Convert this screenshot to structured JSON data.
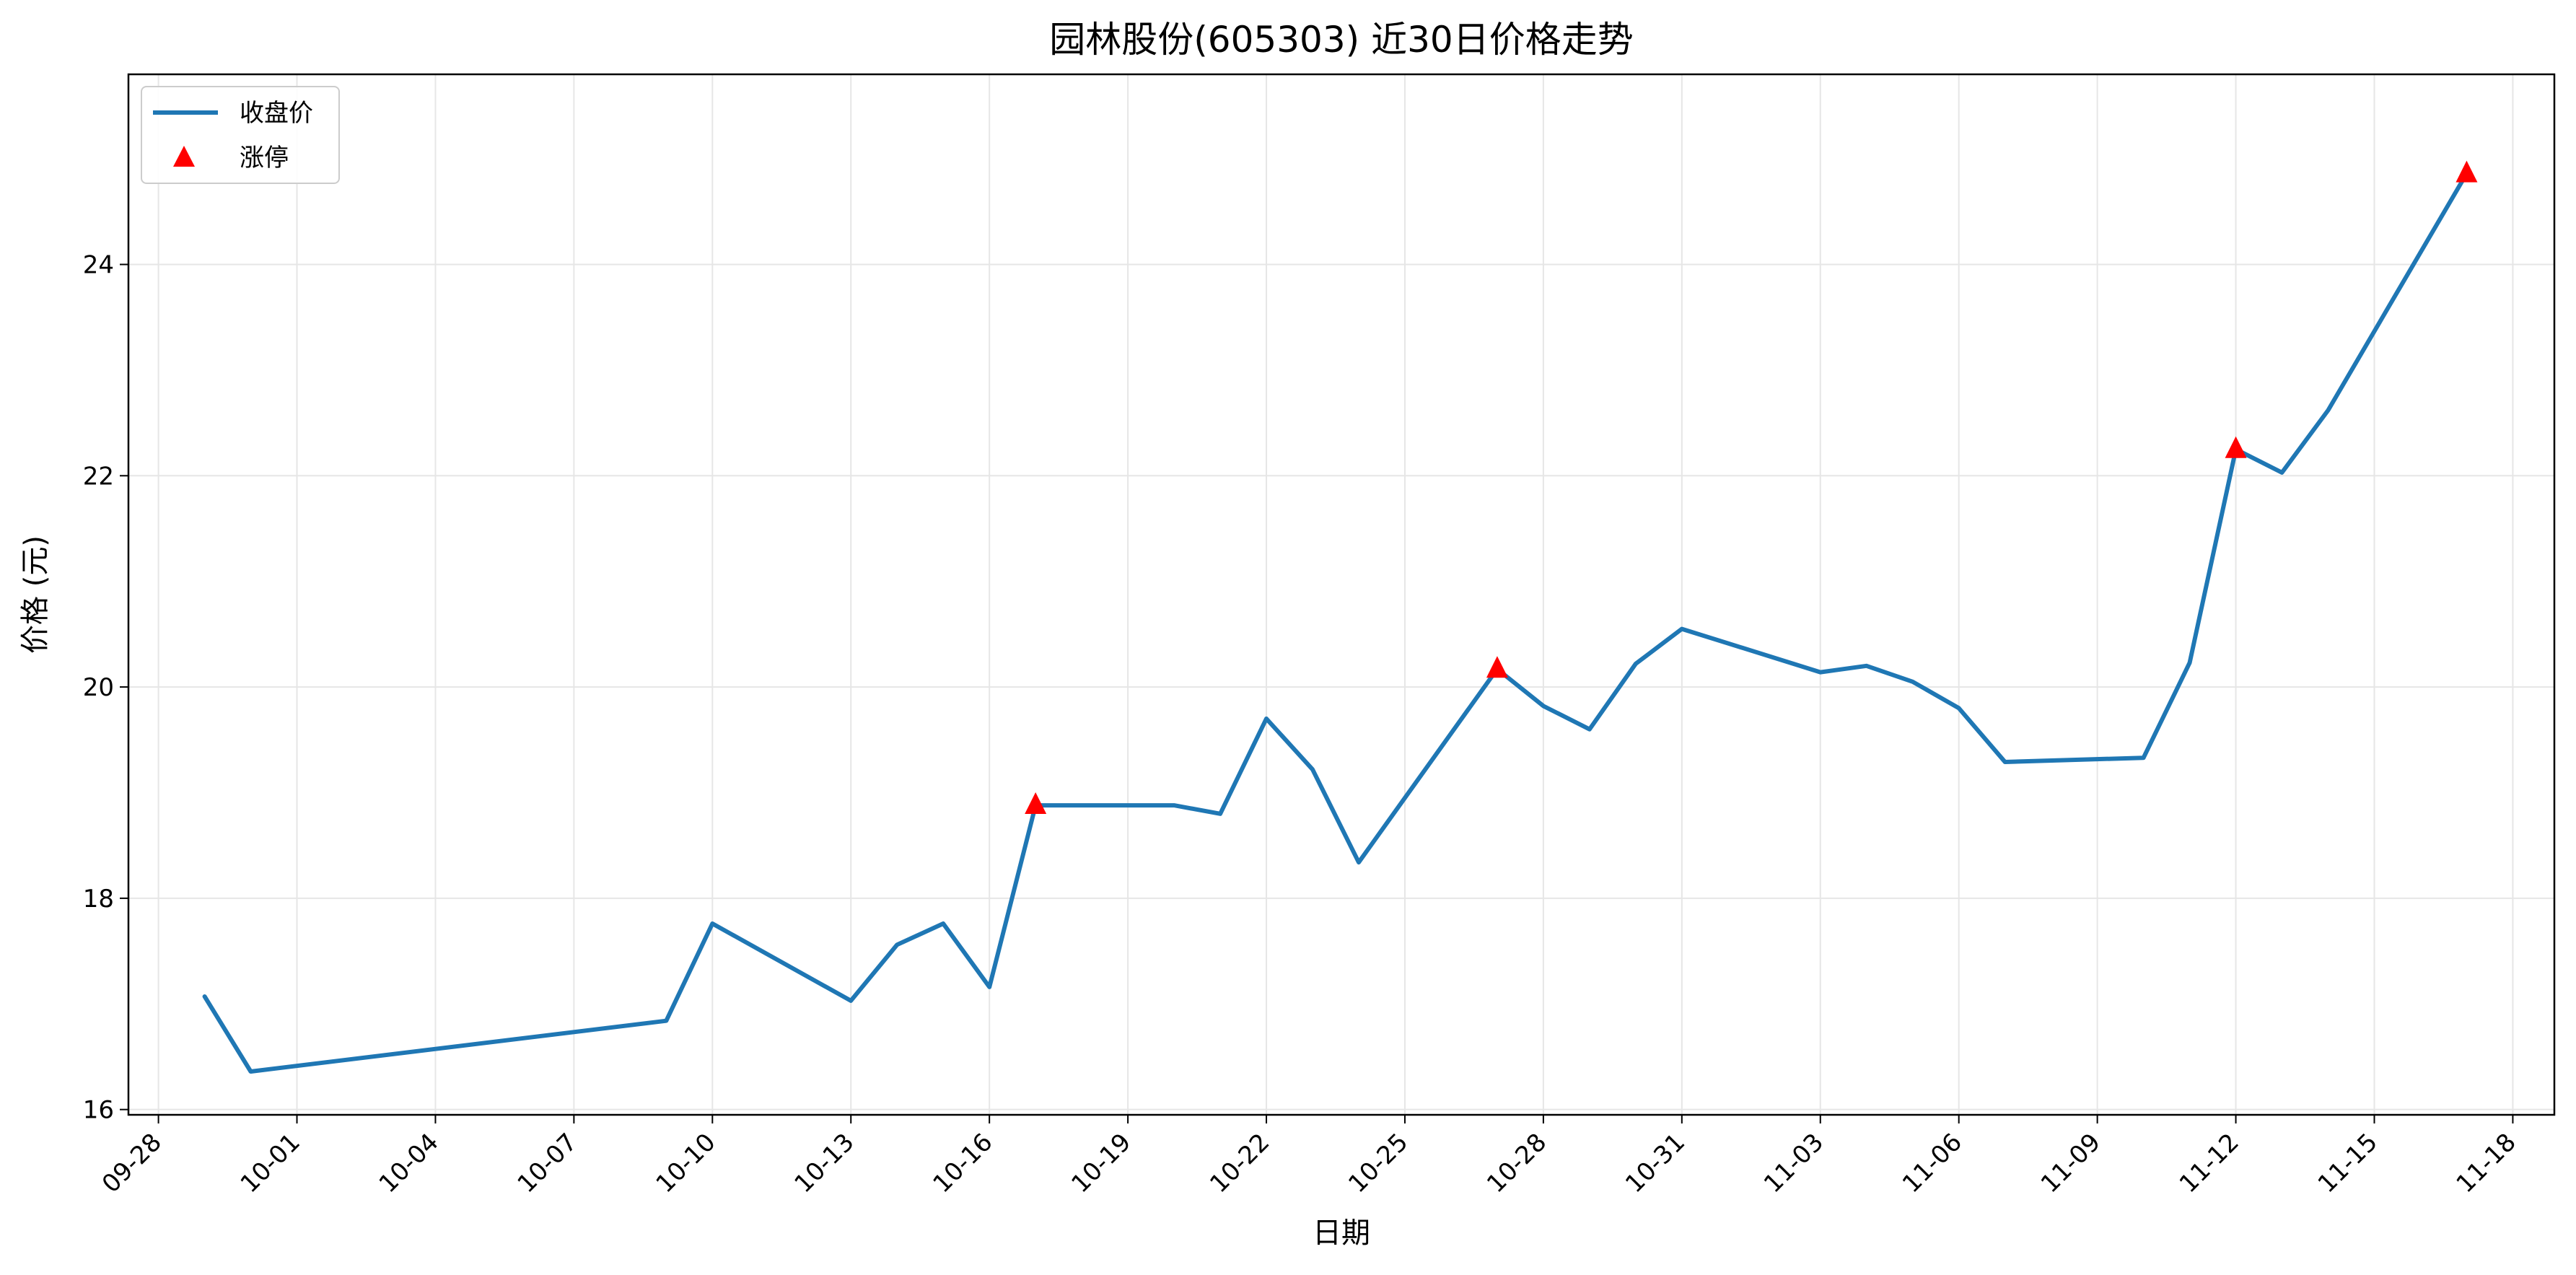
{
  "chart_data": {
    "type": "line",
    "title": "园林股份(605303) 近30日价格走势",
    "xlabel": "日期",
    "ylabel": "价格 (元)",
    "x_ticks": [
      "09-28",
      "10-01",
      "10-04",
      "10-07",
      "10-10",
      "10-13",
      "10-16",
      "10-19",
      "10-22",
      "10-25",
      "10-28",
      "10-31",
      "11-03",
      "11-06",
      "11-09",
      "11-12",
      "11-15",
      "11-18"
    ],
    "x_range": [
      "09-28",
      "11-18"
    ],
    "ylim": [
      15.95,
      25.8
    ],
    "y_ticks": [
      16,
      18,
      20,
      22,
      24
    ],
    "grid": true,
    "legend_position": "top-left",
    "colors": {
      "line": "#1f77b4",
      "marker": "#ff0000",
      "grid": "#e6e6e6"
    },
    "series": [
      {
        "name": "收盘价",
        "kind": "line",
        "points": [
          {
            "x": "09-29",
            "y": 17.07
          },
          {
            "x": "09-30",
            "y": 16.36
          },
          {
            "x": "10-09",
            "y": 16.84
          },
          {
            "x": "10-10",
            "y": 17.76
          },
          {
            "x": "10-13",
            "y": 17.03
          },
          {
            "x": "10-14",
            "y": 17.56
          },
          {
            "x": "10-15",
            "y": 17.76
          },
          {
            "x": "10-16",
            "y": 17.16
          },
          {
            "x": "10-17",
            "y": 18.88
          },
          {
            "x": "10-20",
            "y": 18.88
          },
          {
            "x": "10-21",
            "y": 18.8
          },
          {
            "x": "10-22",
            "y": 19.7
          },
          {
            "x": "10-23",
            "y": 19.22
          },
          {
            "x": "10-24",
            "y": 18.34
          },
          {
            "x": "10-27",
            "y": 20.17
          },
          {
            "x": "10-28",
            "y": 19.82
          },
          {
            "x": "10-29",
            "y": 19.6
          },
          {
            "x": "10-30",
            "y": 20.22
          },
          {
            "x": "10-31",
            "y": 20.55
          },
          {
            "x": "11-03",
            "y": 20.14
          },
          {
            "x": "11-04",
            "y": 20.2
          },
          {
            "x": "11-05",
            "y": 20.05
          },
          {
            "x": "11-06",
            "y": 19.8
          },
          {
            "x": "11-07",
            "y": 19.29
          },
          {
            "x": "11-10",
            "y": 19.33
          },
          {
            "x": "11-11",
            "y": 20.23
          },
          {
            "x": "11-12",
            "y": 22.25
          },
          {
            "x": "11-13",
            "y": 22.03
          },
          {
            "x": "11-14",
            "y": 22.62
          },
          {
            "x": "11-17",
            "y": 24.86
          }
        ]
      },
      {
        "name": "涨停",
        "kind": "scatter",
        "marker": "triangle-up",
        "points": [
          {
            "x": "10-17",
            "y": 18.88
          },
          {
            "x": "10-27",
            "y": 20.17
          },
          {
            "x": "11-12",
            "y": 22.25
          },
          {
            "x": "11-17",
            "y": 24.86
          }
        ]
      }
    ]
  }
}
